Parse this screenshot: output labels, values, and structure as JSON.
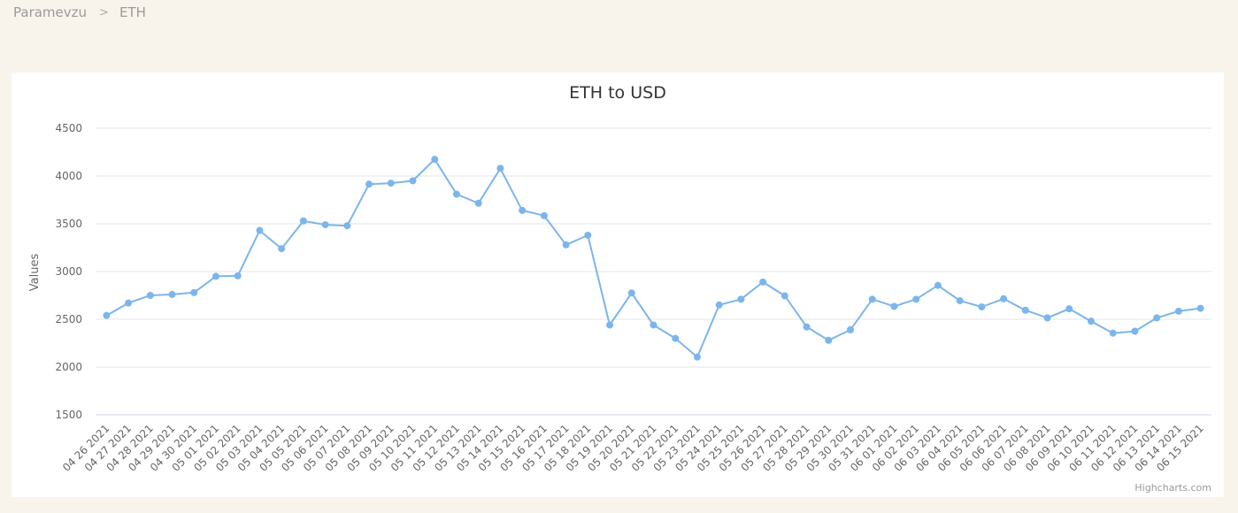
{
  "breadcrumb": {
    "home": "Paramevzu",
    "separator": ">",
    "current": "ETH"
  },
  "credits": "Highcharts.com",
  "colors": {
    "series": "#7cb5ec",
    "grid": "#e6e6e6",
    "axis_line": "#ccd6eb",
    "page_bg": "#f8f4ec"
  },
  "chart_data": {
    "type": "line",
    "title": "ETH to USD",
    "xlabel": "",
    "ylabel": "Values",
    "ylim": [
      1500,
      4500
    ],
    "yticks": [
      1500,
      2000,
      2500,
      3000,
      3500,
      4000,
      4500
    ],
    "grid": true,
    "legend": "none",
    "categories": [
      "04 26 2021",
      "04 27 2021",
      "04 28 2021",
      "04 29 2021",
      "04 30 2021",
      "05 01 2021",
      "05 02 2021",
      "05 03 2021",
      "05 04 2021",
      "05 05 2021",
      "05 06 2021",
      "05 07 2021",
      "05 08 2021",
      "05 09 2021",
      "05 10 2021",
      "05 11 2021",
      "05 12 2021",
      "05 13 2021",
      "05 14 2021",
      "05 15 2021",
      "05 16 2021",
      "05 17 2021",
      "05 18 2021",
      "05 19 2021",
      "05 20 2021",
      "05 21 2021",
      "05 22 2021",
      "05 23 2021",
      "05 24 2021",
      "05 25 2021",
      "05 26 2021",
      "05 27 2021",
      "05 28 2021",
      "05 29 2021",
      "05 30 2021",
      "05 31 2021",
      "06 01 2021",
      "06 02 2021",
      "06 03 2021",
      "06 04 2021",
      "06 05 2021",
      "06 06 2021",
      "06 07 2021",
      "06 08 2021",
      "06 09 2021",
      "06 10 2021",
      "06 11 2021",
      "06 12 2021",
      "06 13 2021",
      "06 14 2021",
      "06 15 2021"
    ],
    "values": [
      2540,
      2670,
      2750,
      2760,
      2780,
      2950,
      2955,
      3430,
      3240,
      3530,
      3490,
      3480,
      3915,
      3925,
      3950,
      4175,
      3810,
      3715,
      4080,
      3640,
      3585,
      3280,
      3380,
      2440,
      2775,
      2440,
      2300,
      2105,
      2650,
      2710,
      2890,
      2745,
      2420,
      2280,
      2390,
      2710,
      2635,
      2710,
      2855,
      2695,
      2630,
      2715,
      2595,
      2515,
      2610,
      2480,
      2355,
      2375,
      2515,
      2585,
      2615
    ]
  }
}
